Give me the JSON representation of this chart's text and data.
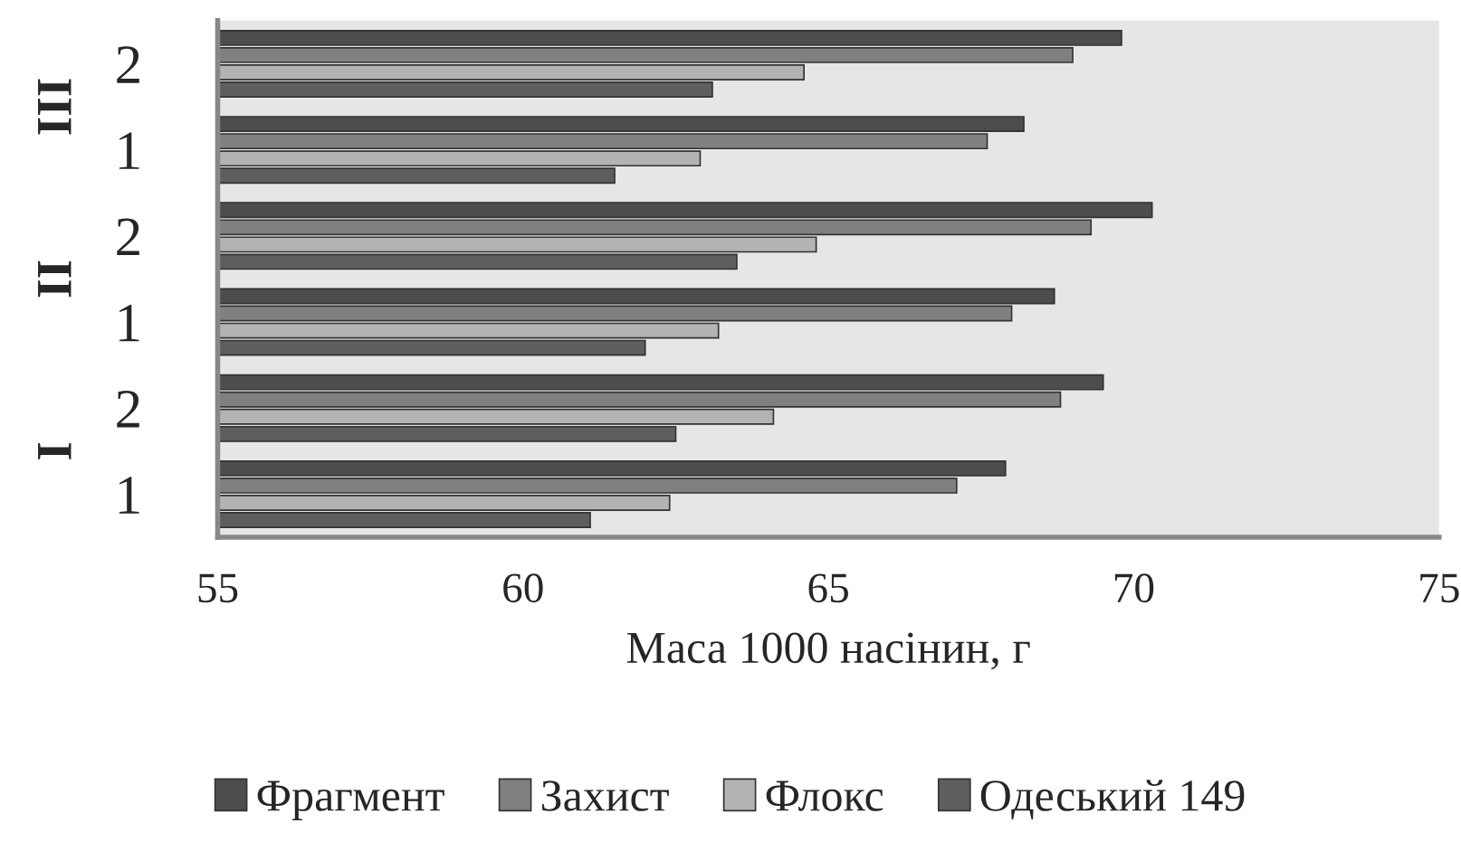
{
  "chart_data": {
    "type": "bar",
    "orientation": "horizontal",
    "xlabel": "Маса 1000 насінин, г",
    "categories": [
      "2",
      "1",
      "2",
      "1",
      "2",
      "1"
    ],
    "annotations": [
      "III",
      "II",
      "I"
    ],
    "series": [
      {
        "name": "Фрагмент",
        "color": "#4d4d4d",
        "values": [
          69.8,
          68.2,
          70.3,
          68.7,
          69.5,
          67.9
        ]
      },
      {
        "name": "Захист",
        "color": "#808080",
        "values": [
          69.0,
          67.6,
          69.3,
          68.0,
          68.8,
          67.1
        ]
      },
      {
        "name": "Флокс",
        "color": "#b3b3b3",
        "values": [
          64.6,
          62.9,
          64.8,
          63.2,
          64.1,
          62.4
        ]
      },
      {
        "name": "Одеський 149",
        "color": "#5e5e5e",
        "values": [
          63.1,
          61.5,
          63.5,
          62.0,
          62.5,
          61.1
        ]
      }
    ],
    "xlim": [
      55,
      75
    ],
    "xticks": [
      55,
      60,
      65,
      70,
      75
    ],
    "grid": false,
    "legend": "bottom"
  }
}
